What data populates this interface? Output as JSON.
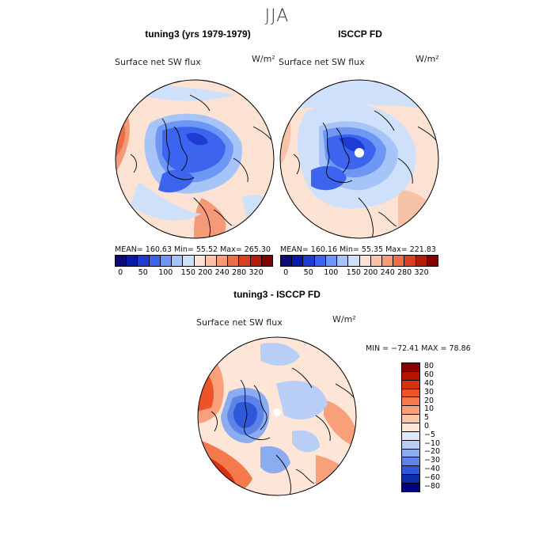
{
  "figure": {
    "title": "JJA"
  },
  "panels": {
    "left": {
      "title": "tuning3 (yrs 1979-1979)",
      "variable": "Surface net SW flux",
      "units": "W/m²",
      "stats": "MEAN=  160.63   Min=    55.52   Max=  265.30"
    },
    "right": {
      "title": "ISCCP FD",
      "variable": "Surface net SW flux",
      "units": "W/m²",
      "stats": "MEAN=  160.16   Min=    55.35   Max=  221.83"
    },
    "diff": {
      "title": "tuning3 - ISCCP FD",
      "variable": "Surface net SW flux",
      "units": "W/m²",
      "stats": "MIN = −72.41 MAX =   78.86"
    }
  },
  "chart_data": [
    {
      "type": "heatmap",
      "projection": "polar stereographic (north)",
      "title": "tuning3 (yrs 1979-1979)",
      "variable": "Surface net SW flux",
      "units": "W/m²",
      "mean": 160.63,
      "min": 55.52,
      "max": 265.3,
      "colorbar_levels": [
        0,
        50,
        100,
        150,
        200,
        240,
        280,
        320
      ],
      "colorbar_colors": [
        "#0a0a78",
        "#0a1aa8",
        "#1e3cd2",
        "#3c64ee",
        "#6e96f4",
        "#a6c4f8",
        "#cfe0fa",
        "#fbe2d2",
        "#f8c2a6",
        "#f49a76",
        "#ea6e48",
        "#d84020",
        "#b41c0a",
        "#820202"
      ]
    },
    {
      "type": "heatmap",
      "projection": "polar stereographic (north)",
      "title": "ISCCP FD",
      "variable": "Surface net SW flux",
      "units": "W/m²",
      "mean": 160.16,
      "min": 55.35,
      "max": 221.83,
      "colorbar_levels": [
        0,
        50,
        100,
        150,
        200,
        240,
        280,
        320
      ],
      "colorbar_colors": [
        "#0a0a78",
        "#0a1aa8",
        "#1e3cd2",
        "#3c64ee",
        "#6e96f4",
        "#a6c4f8",
        "#cfe0fa",
        "#fbe2d2",
        "#f8c2a6",
        "#f49a76",
        "#ea6e48",
        "#d84020",
        "#b41c0a",
        "#820202"
      ]
    },
    {
      "type": "heatmap",
      "projection": "polar stereographic (north)",
      "title": "tuning3 - ISCCP FD",
      "variable": "Surface net SW flux",
      "units": "W/m²",
      "min": -72.41,
      "max": 78.86,
      "colorbar_levels": [
        80,
        60,
        40,
        30,
        20,
        10,
        5,
        0,
        -5,
        -10,
        -20,
        -30,
        -40,
        -60,
        -80
      ],
      "colorbar_tick_labels": [
        "80",
        "60",
        "40",
        "30",
        "20",
        "10",
        "5",
        "0",
        "−5",
        "−10",
        "−20",
        "−30",
        "−40",
        "−60",
        "−80"
      ],
      "colorbar_colors": [
        "#8a0000",
        "#b41400",
        "#d83210",
        "#ee5228",
        "#f47a4e",
        "#f8a07a",
        "#fbc6a8",
        "#fde6d8",
        "#dde8fa",
        "#b8cef6",
        "#8cacf0",
        "#5c84e8",
        "#2e58d8",
        "#0c2ca8",
        "#000080"
      ]
    }
  ]
}
